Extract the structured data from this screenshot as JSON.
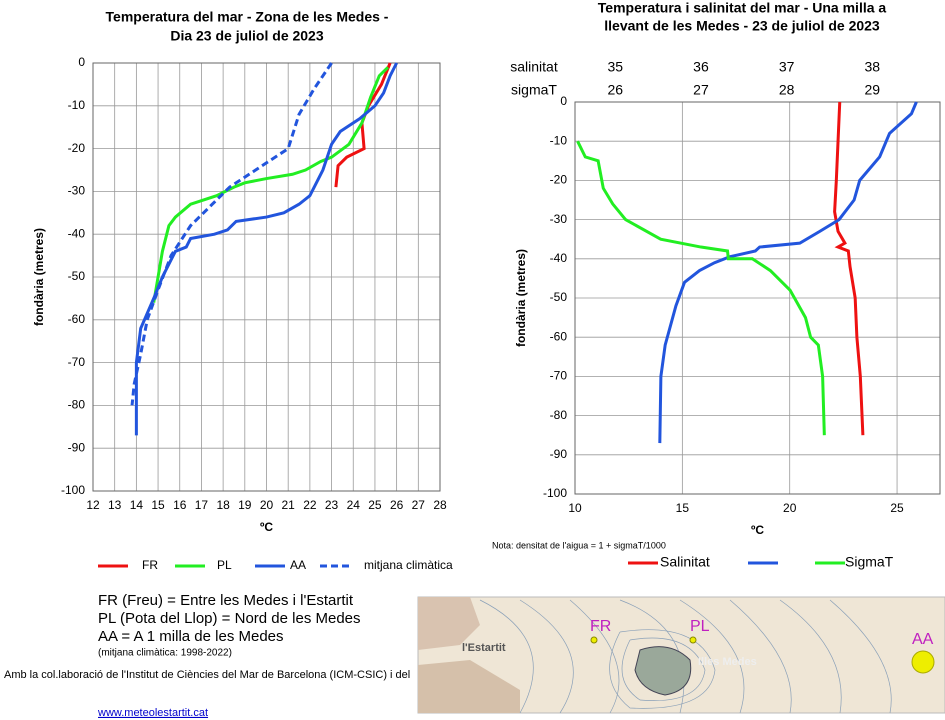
{
  "chart_data": [
    {
      "type": "line",
      "title": [
        "Temperatura del mar   -     Zona de les Medes -",
        "Dia 23 de juliol de 2023"
      ],
      "xlabel": "ºC",
      "ylabel": "fondària (metres)",
      "xlim": [
        12,
        28
      ],
      "ylim": [
        -100,
        0
      ],
      "xticks": [
        12,
        13,
        14,
        15,
        16,
        17,
        18,
        19,
        20,
        21,
        22,
        23,
        24,
        25,
        26,
        27,
        28
      ],
      "yticks": [
        0,
        -10,
        -20,
        -30,
        -40,
        -50,
        -60,
        -70,
        -80,
        -90,
        -100
      ],
      "grid": true,
      "series": [
        {
          "name": "FR",
          "color": "#ee1111",
          "x": [
            25.7,
            25.3,
            24.7,
            24.4,
            24.5,
            23.7,
            23.3,
            23.2
          ],
          "values": [
            0,
            -5,
            -10,
            -14,
            -20,
            -22,
            -24,
            -29
          ]
        },
        {
          "name": "PL",
          "color": "#22ee22",
          "x": [
            25.6,
            25.2,
            24.8,
            24.4,
            23.8,
            23.0,
            22.5,
            21.8,
            21.2,
            20.0,
            19.0,
            18.5,
            17.7,
            16.5,
            15.8,
            15.5,
            15.2,
            15.0,
            14.8
          ],
          "values": [
            -1,
            -3,
            -8,
            -14,
            -19,
            -22,
            -23,
            -25,
            -26,
            -27,
            -28,
            -29,
            -31,
            -33,
            -36,
            -38,
            -44,
            -50,
            -56
          ]
        },
        {
          "name": "AA",
          "color": "#2255dd",
          "x": [
            26.0,
            25.7,
            25.4,
            25.0,
            24.3,
            23.4,
            23.0,
            22.6,
            22.0,
            21.5,
            20.8,
            20.0,
            18.6,
            18.2,
            17.6,
            16.5,
            16.3,
            15.8,
            15.2,
            14.8,
            14.2,
            14.0,
            14.0,
            14.0
          ],
          "values": [
            0,
            -3,
            -7,
            -10,
            -13,
            -16,
            -19,
            -25,
            -31,
            -33,
            -35,
            -36,
            -37,
            -39,
            -40,
            -41,
            -43,
            -44,
            -50,
            -55,
            -62,
            -70,
            -80,
            -87
          ]
        },
        {
          "name": "mitjana climàtica",
          "color": "#2255dd",
          "dash": true,
          "x": [
            23.0,
            22.2,
            21.5,
            21.0,
            19.5,
            18.3,
            17.5,
            16.5,
            15.6,
            15.0,
            14.5,
            14.2,
            13.9,
            13.8
          ],
          "values": [
            0,
            -6,
            -12,
            -20,
            -25,
            -29,
            -33,
            -38,
            -45,
            -53,
            -60,
            -68,
            -75,
            -80
          ]
        }
      ]
    },
    {
      "type": "line",
      "title": [
        "Temperatura i salinitat del mar -  Una milla a",
        "llevant de les Medes - 23 de juliol de 2023"
      ],
      "xlabel": "ºC",
      "ylabel": "fondària (metres)",
      "x2label": "salinitat",
      "x3label": "sigmaT",
      "xlim": [
        10,
        27
      ],
      "ylim": [
        -100,
        0
      ],
      "xticks": [
        10,
        15,
        20,
        25
      ],
      "x2lim": [
        34.53,
        38.79
      ],
      "x2ticks": [
        35,
        36,
        37,
        38
      ],
      "x3lim": [
        25.53,
        29.79
      ],
      "x3ticks": [
        26,
        27,
        28,
        29
      ],
      "yticks": [
        0,
        -10,
        -20,
        -30,
        -40,
        -50,
        -60,
        -70,
        -80,
        -90,
        -100
      ],
      "grid": true,
      "note": "Nota: densitat de l'aigua = 1 + sigmaT/1000",
      "series": [
        {
          "name": "Salinitat",
          "color": "#ee1111",
          "axis": "x2",
          "x": [
            37.62,
            37.6,
            37.58,
            37.56,
            37.6,
            37.68,
            37.6,
            37.72,
            37.74,
            37.8,
            37.82,
            37.86,
            37.88,
            37.89
          ],
          "values": [
            0,
            -10,
            -20,
            -28,
            -33,
            -36,
            -37,
            -38,
            -42,
            -50,
            -60,
            -70,
            -80,
            -85
          ]
        },
        {
          "color": "#2255dd",
          "x": [
            25.9,
            25.67,
            24.65,
            24.19,
            23.26,
            23.0,
            22.3,
            21.4,
            20.47,
            18.6,
            18.4,
            17.2,
            16.5,
            15.8,
            15.1,
            14.7,
            14.4,
            14.2,
            14.0,
            13.95
          ],
          "values": [
            0,
            -3,
            -8,
            -14,
            -20,
            -25,
            -30,
            -33,
            -36,
            -37,
            -38,
            -39.5,
            -41,
            -43,
            -46,
            -52,
            -58,
            -62,
            -70,
            -87
          ]
        },
        {
          "name": "SigmaT",
          "color": "#22ee22",
          "axis": "x3",
          "x": [
            25.56,
            25.65,
            25.8,
            25.86,
            25.97,
            26.12,
            26.53,
            27.0,
            27.31,
            27.32,
            27.6,
            27.81,
            28.04,
            28.22,
            28.28,
            28.37,
            28.42,
            28.44
          ],
          "values": [
            -10,
            -14,
            -15,
            -22,
            -26,
            -30,
            -35,
            -37,
            -38,
            -40,
            -40,
            -43,
            -48,
            -55,
            -60,
            -62,
            -70,
            -85
          ]
        }
      ]
    }
  ],
  "notes": [
    "FR (Freu) = Entre les Medes i l'Estartit",
    "PL (Pota del Llop) = Nord de les Medes",
    "AA = A 1 milla de les Medes"
  ],
  "note_small": "(mitjana climàtica: 1998-2022)",
  "credit": "Amb la col.laboració de l'Institut de Ciències del Mar de Barcelona (ICM-CSIC) i del",
  "link": "www.meteolestartit.cat",
  "map": {
    "labels": [
      "FR",
      "PL",
      "AA",
      "l'Estartit",
      "Illes Medes"
    ]
  }
}
